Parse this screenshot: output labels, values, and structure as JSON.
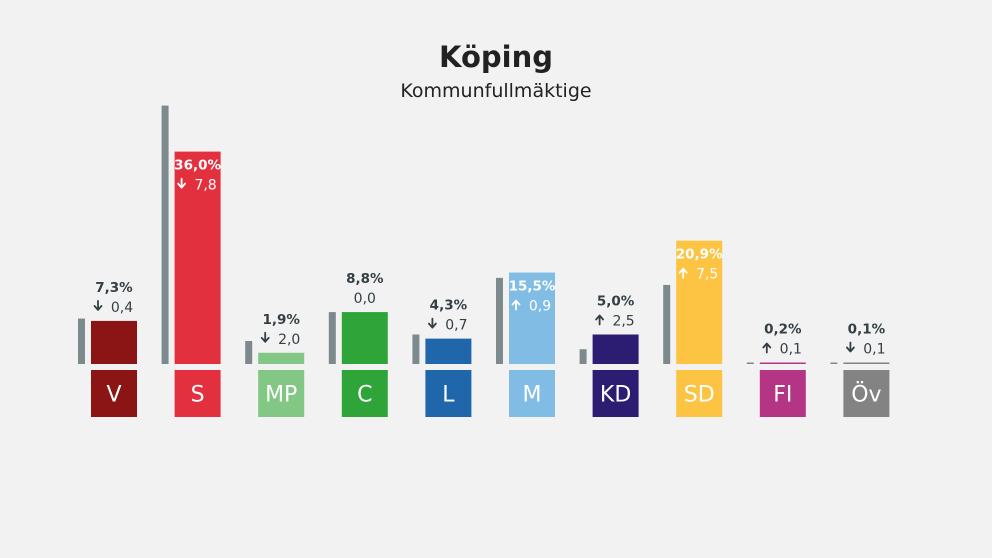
{
  "title": "Köping",
  "subtitle": "Kommunfullmäktige",
  "chart_data": {
    "type": "bar",
    "title": "Köping",
    "subtitle": "Kommunfullmäktige",
    "ylim": [
      0,
      45
    ],
    "categories": [
      "V",
      "S",
      "MP",
      "C",
      "L",
      "M",
      "KD",
      "SD",
      "FI",
      "Öv"
    ],
    "series": [
      {
        "values": [
          7.3,
          36.0,
          1.9,
          8.8,
          4.3,
          15.5,
          5.0,
          20.9,
          0.2,
          0.1
        ]
      },
      {
        "values": [
          7.7,
          43.8,
          3.9,
          8.8,
          5.0,
          14.6,
          2.5,
          13.4,
          0.1,
          0.2
        ]
      }
    ],
    "value_labels": [
      "7,3%",
      "36,0%",
      "1,9%",
      "8,8%",
      "4,3%",
      "15,5%",
      "5,0%",
      "20,9%",
      "0,2%",
      "0,1%"
    ],
    "change_labels": [
      "0,4",
      "7,8",
      "2,0",
      "0,0",
      "0,7",
      "0,9",
      "2,5",
      "7,5",
      "0,1",
      "0,1"
    ],
    "change_direction": [
      "down",
      "down",
      "down",
      "none",
      "down",
      "up",
      "up",
      "up",
      "up",
      "down"
    ],
    "colors": [
      "#8b1414",
      "#e2303f",
      "#83c784",
      "#2fa438",
      "#1f66ab",
      "#80bce4",
      "#2d1d72",
      "#fdc443",
      "#b43583",
      "#838383"
    ],
    "previous_color": "#7d8a8d"
  }
}
